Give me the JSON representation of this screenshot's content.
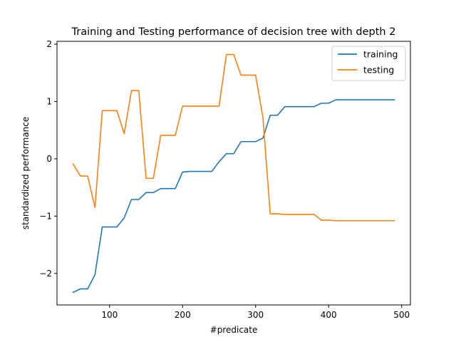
{
  "chart_data": {
    "type": "line",
    "title": "Training and Testing performance of decision tree with depth 2",
    "xlabel": "#predicate",
    "ylabel": "standardized performance",
    "xlim": [
      28,
      512
    ],
    "ylim": [
      -2.55,
      2.05
    ],
    "xticks": [
      100,
      200,
      300,
      400,
      500
    ],
    "yticks": [
      -2,
      -1,
      0,
      1,
      2
    ],
    "xtick_labels": [
      "100",
      "200",
      "300",
      "400",
      "500"
    ],
    "ytick_labels": [
      "−2",
      "−1",
      "0",
      "1",
      "2"
    ],
    "grid": false,
    "legend_position": "top-right",
    "x": [
      50,
      60,
      70,
      80,
      90,
      100,
      110,
      120,
      130,
      140,
      150,
      160,
      170,
      180,
      190,
      200,
      210,
      220,
      230,
      240,
      250,
      260,
      270,
      280,
      290,
      300,
      310,
      320,
      330,
      340,
      350,
      360,
      370,
      380,
      390,
      400,
      410,
      420,
      430,
      440,
      450,
      460,
      470,
      480,
      490
    ],
    "series": [
      {
        "name": "training",
        "color": "#1f77b4",
        "values": [
          -2.33,
          -2.27,
          -2.27,
          -2.02,
          -1.19,
          -1.19,
          -1.19,
          -1.03,
          -0.71,
          -0.71,
          -0.59,
          -0.59,
          -0.52,
          -0.52,
          -0.52,
          -0.23,
          -0.22,
          -0.22,
          -0.22,
          -0.22,
          -0.05,
          0.09,
          0.09,
          0.3,
          0.3,
          0.3,
          0.36,
          0.76,
          0.76,
          0.91,
          0.91,
          0.91,
          0.91,
          0.91,
          0.97,
          0.97,
          1.03,
          1.03,
          1.03,
          1.03,
          1.03,
          1.03,
          1.03,
          1.03,
          1.03
        ]
      },
      {
        "name": "testing",
        "color": "#ff7f0e",
        "values": [
          -0.09,
          -0.3,
          -0.3,
          -0.85,
          0.84,
          0.84,
          0.84,
          0.44,
          1.19,
          1.19,
          -0.34,
          -0.34,
          0.41,
          0.41,
          0.41,
          0.92,
          0.92,
          0.92,
          0.92,
          0.92,
          0.92,
          1.82,
          1.82,
          1.46,
          1.46,
          1.46,
          0.72,
          -0.96,
          -0.96,
          -0.97,
          -0.97,
          -0.97,
          -0.97,
          -0.97,
          -1.07,
          -1.07,
          -1.08,
          -1.08,
          -1.08,
          -1.08,
          -1.08,
          -1.08,
          -1.08,
          -1.08,
          -1.08
        ]
      }
    ]
  }
}
